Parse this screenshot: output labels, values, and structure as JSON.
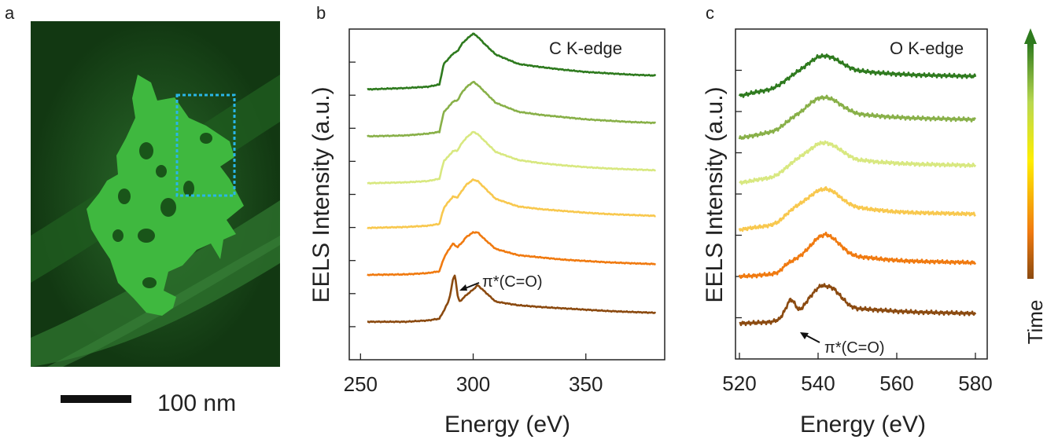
{
  "panel_labels": {
    "a": "a",
    "b": "b",
    "c": "c"
  },
  "micrograph": {
    "scale_bar_label": "100 nm",
    "colors": {
      "background": "#123812",
      "particle": "#3fc43f",
      "selection_box": "#29b6e8"
    }
  },
  "colorbar": {
    "label": "Time",
    "colors": {
      "bottom": "#8b4a10",
      "low": "#f07a10",
      "mid": "#ffee00",
      "high": "#b8d850",
      "top": "#2e7a1e"
    }
  },
  "chart_data": [
    {
      "type": "line",
      "panel": "b",
      "annotation": "C K-edge",
      "peak_label": "π*(C=O)",
      "xlabel": "Energy (eV)",
      "ylabel": "EELS Intensity (a.u.)",
      "xlim": [
        245,
        385
      ],
      "xticks": [
        250,
        300,
        350
      ],
      "xticklabels": [
        "250",
        "300",
        "350"
      ],
      "ylim": [
        0,
        7.4
      ],
      "y_minor_tick_count": 9,
      "series": [
        {
          "color": "#8b4a10",
          "offset": 0.85,
          "x": [
            253,
            270,
            280,
            285,
            287,
            289,
            290,
            291,
            292,
            293,
            294,
            295,
            297,
            300,
            302,
            305,
            310,
            320,
            330,
            340,
            350,
            360,
            370,
            381
          ],
          "values": [
            0,
            0,
            0.03,
            0.07,
            0.25,
            0.45,
            0.65,
            0.95,
            1.05,
            0.6,
            0.45,
            0.5,
            0.6,
            0.72,
            0.82,
            0.68,
            0.45,
            0.37,
            0.33,
            0.3,
            0.27,
            0.24,
            0.22,
            0.2
          ]
        },
        {
          "color": "#f07a10",
          "offset": 1.9,
          "x": [
            253,
            270,
            280,
            285,
            287,
            289,
            291,
            293,
            295,
            297,
            300,
            302,
            305,
            310,
            320,
            330,
            340,
            350,
            360,
            370,
            381
          ],
          "values": [
            0,
            0.01,
            0.04,
            0.08,
            0.38,
            0.55,
            0.7,
            0.62,
            0.72,
            0.85,
            0.95,
            0.95,
            0.8,
            0.58,
            0.44,
            0.39,
            0.34,
            0.31,
            0.28,
            0.26,
            0.24
          ]
        },
        {
          "color": "#f8c84e",
          "offset": 2.95,
          "x": [
            253,
            270,
            280,
            285,
            287,
            289,
            291,
            293,
            295,
            297,
            300,
            302,
            305,
            310,
            320,
            330,
            340,
            350,
            360,
            370,
            381
          ],
          "values": [
            0,
            0.02,
            0.05,
            0.09,
            0.45,
            0.58,
            0.7,
            0.68,
            0.83,
            0.97,
            1.08,
            1.05,
            0.9,
            0.65,
            0.48,
            0.42,
            0.38,
            0.34,
            0.31,
            0.29,
            0.27
          ]
        },
        {
          "color": "#d8e880",
          "offset": 3.95,
          "x": [
            253,
            270,
            280,
            285,
            287,
            289,
            291,
            293,
            295,
            297,
            300,
            302,
            305,
            310,
            320,
            330,
            340,
            350,
            360,
            370,
            381
          ],
          "values": [
            0,
            0.02,
            0.05,
            0.1,
            0.5,
            0.6,
            0.72,
            0.73,
            0.9,
            1.02,
            1.15,
            1.1,
            0.95,
            0.7,
            0.52,
            0.45,
            0.4,
            0.36,
            0.33,
            0.31,
            0.29
          ]
        },
        {
          "color": "#88b048",
          "offset": 5.0,
          "x": [
            253,
            270,
            280,
            285,
            287,
            289,
            291,
            293,
            295,
            297,
            300,
            302,
            305,
            310,
            320,
            330,
            340,
            350,
            360,
            370,
            381
          ],
          "values": [
            0,
            0.02,
            0.06,
            0.1,
            0.55,
            0.65,
            0.78,
            0.8,
            0.98,
            1.1,
            1.22,
            1.15,
            1.0,
            0.75,
            0.55,
            0.48,
            0.43,
            0.38,
            0.35,
            0.32,
            0.3
          ]
        },
        {
          "color": "#2e7a1e",
          "offset": 6.05,
          "x": [
            253,
            270,
            280,
            285,
            287,
            289,
            291,
            293,
            295,
            297,
            300,
            302,
            305,
            310,
            320,
            330,
            340,
            350,
            360,
            370,
            381
          ],
          "values": [
            0,
            0.03,
            0.06,
            0.11,
            0.58,
            0.68,
            0.8,
            0.85,
            1.02,
            1.12,
            1.25,
            1.18,
            1.02,
            0.78,
            0.57,
            0.5,
            0.44,
            0.39,
            0.36,
            0.33,
            0.31
          ]
        }
      ]
    },
    {
      "type": "line",
      "panel": "c",
      "annotation": "O K-edge",
      "peak_label": "π*(C=O)",
      "xlabel": "Energy (eV)",
      "ylabel": "EELS Intensity (a.u.)",
      "xlim": [
        519,
        583
      ],
      "xticks": [
        520,
        540,
        560,
        580
      ],
      "xticklabels": [
        "520",
        "540",
        "560",
        "580"
      ],
      "ylim": [
        0,
        7.4
      ],
      "y_minor_tick_count": 7,
      "series": [
        {
          "color": "#8b4a10",
          "offset": 0.8,
          "x": [
            520,
            524,
            528,
            530,
            531,
            532,
            533,
            534,
            535,
            536,
            538,
            540,
            541,
            542,
            543,
            544,
            546,
            548,
            550,
            555,
            560,
            565,
            570,
            575,
            580
          ],
          "values": [
            0,
            0.01,
            0.03,
            0.08,
            0.2,
            0.38,
            0.55,
            0.45,
            0.3,
            0.35,
            0.6,
            0.8,
            0.85,
            0.83,
            0.82,
            0.78,
            0.58,
            0.4,
            0.33,
            0.3,
            0.27,
            0.25,
            0.24,
            0.23,
            0.22
          ]
        },
        {
          "color": "#f07a10",
          "offset": 1.85,
          "x": [
            520,
            524,
            528,
            530,
            532,
            534,
            536,
            538,
            540,
            542,
            544,
            546,
            548,
            550,
            555,
            560,
            565,
            570,
            575,
            580
          ],
          "values": [
            0,
            0.02,
            0.05,
            0.1,
            0.28,
            0.38,
            0.5,
            0.68,
            0.88,
            0.95,
            0.85,
            0.68,
            0.52,
            0.45,
            0.4,
            0.36,
            0.34,
            0.33,
            0.32,
            0.31
          ]
        },
        {
          "color": "#f8c84e",
          "offset": 2.9,
          "x": [
            520,
            524,
            528,
            530,
            532,
            534,
            536,
            538,
            540,
            542,
            544,
            546,
            548,
            550,
            555,
            560,
            565,
            570,
            575,
            580
          ],
          "values": [
            0,
            0.05,
            0.1,
            0.18,
            0.35,
            0.5,
            0.62,
            0.75,
            0.88,
            0.92,
            0.85,
            0.7,
            0.58,
            0.5,
            0.44,
            0.4,
            0.38,
            0.37,
            0.36,
            0.35
          ]
        },
        {
          "color": "#d8e880",
          "offset": 3.95,
          "x": [
            520,
            524,
            528,
            530,
            532,
            534,
            536,
            538,
            540,
            542,
            544,
            546,
            548,
            550,
            555,
            560,
            565,
            570,
            575,
            580
          ],
          "values": [
            0,
            0.06,
            0.12,
            0.2,
            0.35,
            0.5,
            0.62,
            0.75,
            0.88,
            0.9,
            0.84,
            0.72,
            0.6,
            0.52,
            0.47,
            0.44,
            0.42,
            0.41,
            0.4,
            0.39
          ]
        },
        {
          "color": "#88b048",
          "offset": 4.95,
          "x": [
            520,
            524,
            528,
            530,
            532,
            534,
            536,
            538,
            540,
            542,
            544,
            546,
            548,
            550,
            555,
            560,
            565,
            570,
            575,
            580
          ],
          "values": [
            0,
            0.07,
            0.14,
            0.22,
            0.36,
            0.5,
            0.62,
            0.78,
            0.9,
            0.92,
            0.86,
            0.74,
            0.63,
            0.55,
            0.5,
            0.47,
            0.45,
            0.44,
            0.43,
            0.42
          ]
        },
        {
          "color": "#2e7a1e",
          "offset": 5.9,
          "x": [
            520,
            524,
            528,
            530,
            532,
            534,
            536,
            538,
            540,
            542,
            544,
            546,
            548,
            550,
            555,
            560,
            565,
            570,
            575,
            580
          ],
          "values": [
            0,
            0.08,
            0.15,
            0.24,
            0.37,
            0.5,
            0.62,
            0.76,
            0.88,
            0.9,
            0.85,
            0.74,
            0.64,
            0.57,
            0.52,
            0.49,
            0.47,
            0.46,
            0.45,
            0.44
          ]
        }
      ]
    }
  ]
}
